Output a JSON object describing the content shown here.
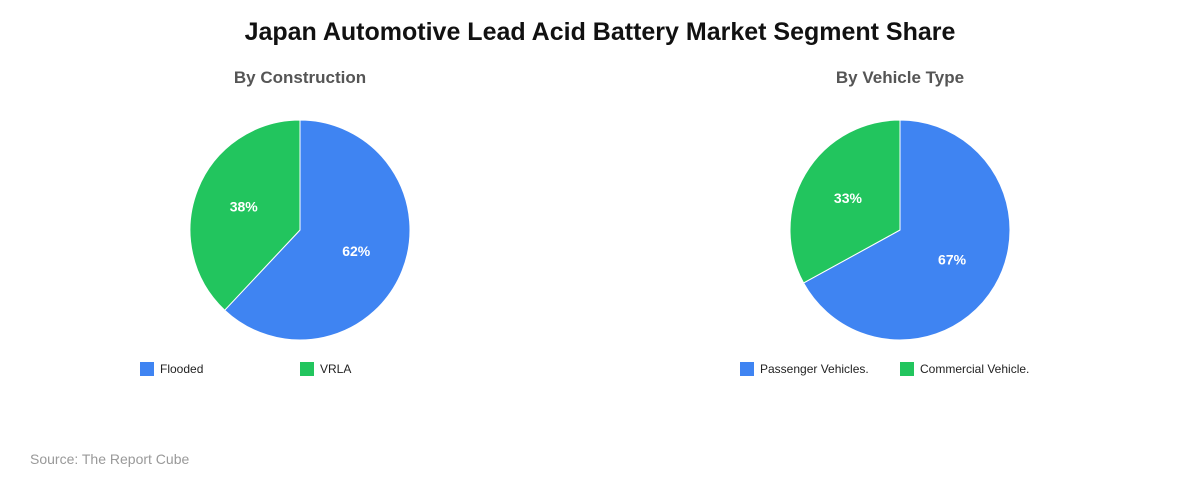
{
  "title": "Japan Automotive Lead Acid Battery Market Segment Share",
  "source": "Source: The Report Cube",
  "chart_data": [
    {
      "type": "pie",
      "title": "By Construction",
      "categories": [
        "Flooded",
        "VRLA"
      ],
      "values": [
        62,
        38
      ],
      "labels": [
        "62%",
        "38%"
      ],
      "colors": [
        "#3f84f2",
        "#22c55e"
      ],
      "legend_position": "bottom"
    },
    {
      "type": "pie",
      "title": "By Vehicle Type",
      "categories": [
        "Passenger Vehicles.",
        "Commercial Vehicle."
      ],
      "values": [
        67,
        33
      ],
      "labels": [
        "67%",
        "33%"
      ],
      "colors": [
        "#3f84f2",
        "#22c55e"
      ],
      "legend_position": "bottom"
    }
  ]
}
